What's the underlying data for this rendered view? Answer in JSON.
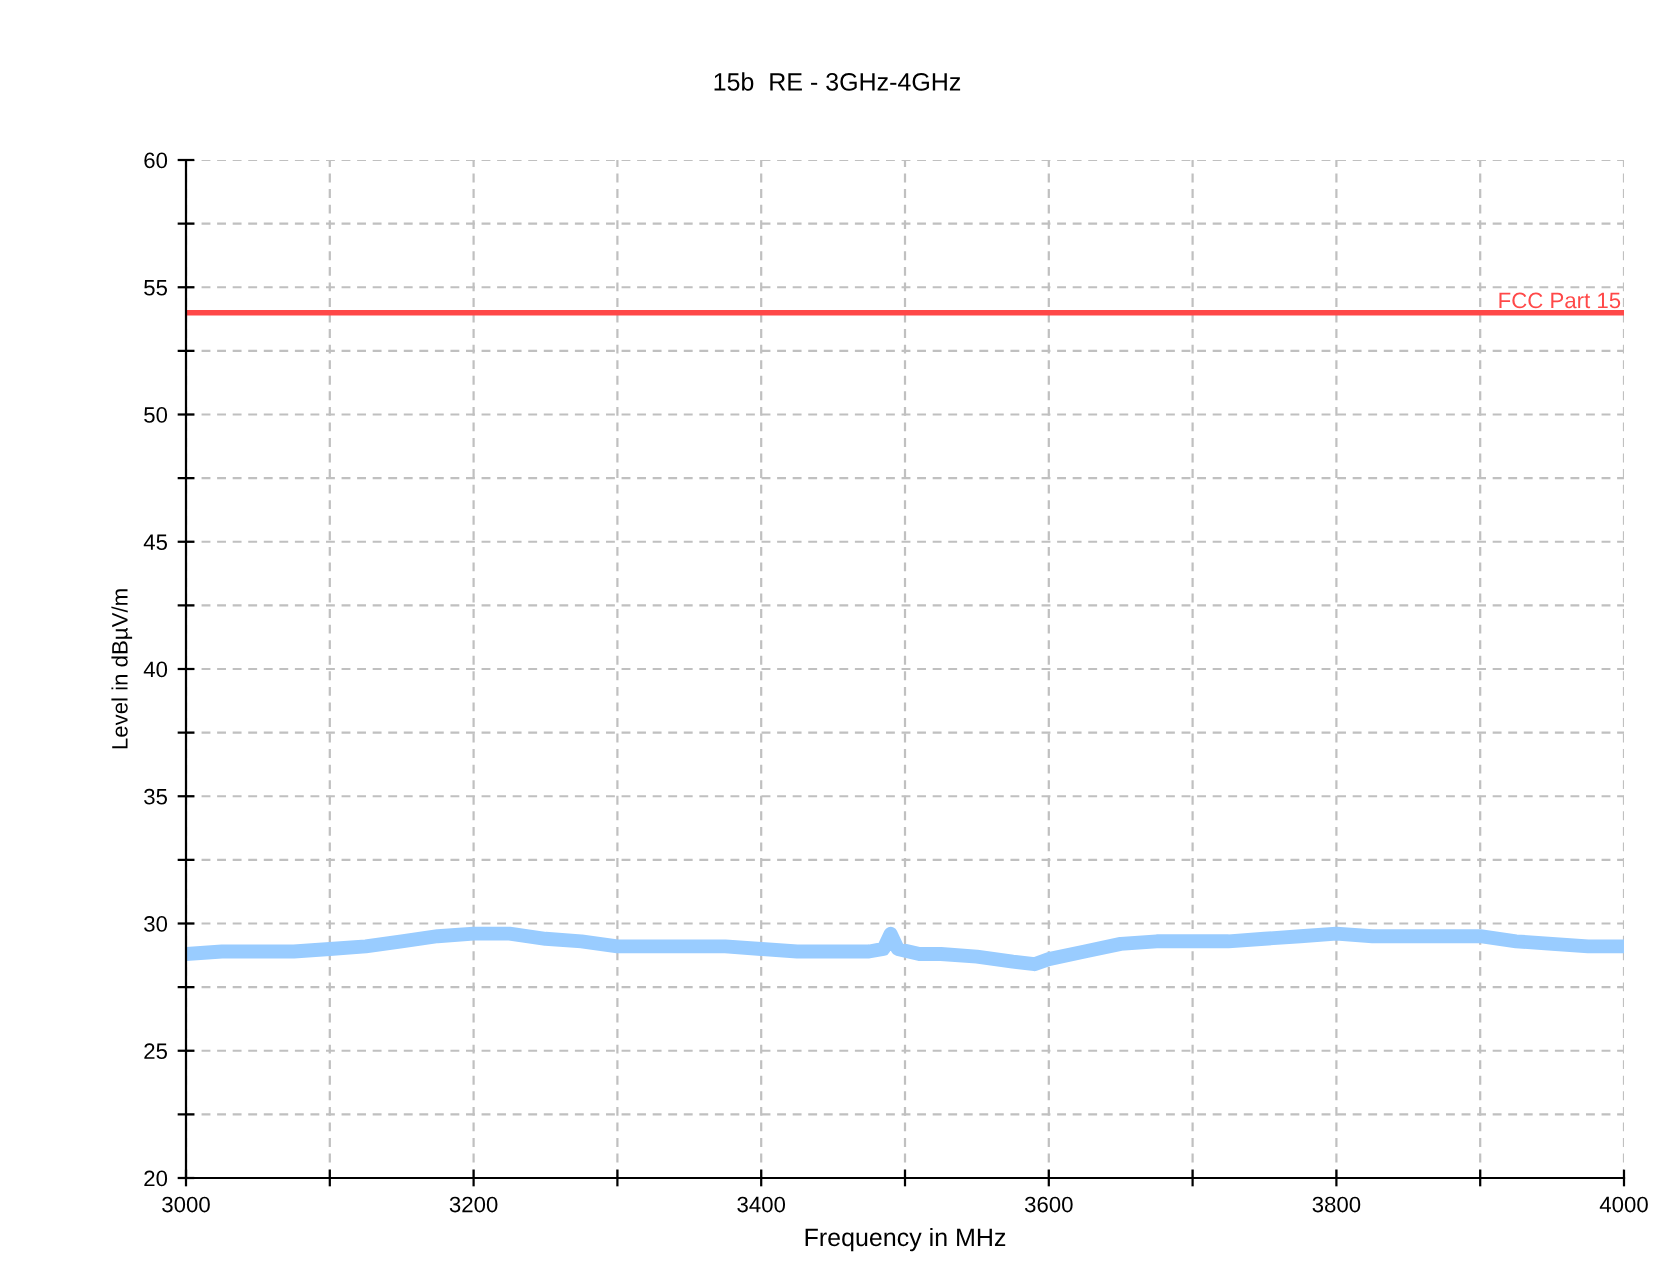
{
  "chart_data": {
    "type": "line",
    "title": "15b  RE - 3GHz-4GHz",
    "xlabel": "Frequency in MHz",
    "ylabel": "Level in dBµV/m",
    "x": [
      3000,
      3025,
      3050,
      3075,
      3100,
      3125,
      3150,
      3175,
      3200,
      3225,
      3250,
      3275,
      3300,
      3325,
      3350,
      3375,
      3400,
      3425,
      3450,
      3475,
      3485,
      3490,
      3495,
      3510,
      3525,
      3550,
      3575,
      3590,
      3600,
      3625,
      3650,
      3675,
      3700,
      3725,
      3750,
      3775,
      3800,
      3825,
      3850,
      3875,
      3900,
      3925,
      3950,
      3975,
      4000
    ],
    "series": [
      {
        "color": "#99ccff",
        "values": [
          28.8,
          28.9,
          28.9,
          28.9,
          29.0,
          29.1,
          29.3,
          29.5,
          29.6,
          29.6,
          29.4,
          29.3,
          29.1,
          29.1,
          29.1,
          29.1,
          29.0,
          28.9,
          28.9,
          28.9,
          29.0,
          29.6,
          29.0,
          28.8,
          28.8,
          28.7,
          28.5,
          28.4,
          28.6,
          28.9,
          29.2,
          29.3,
          29.3,
          29.3,
          29.4,
          29.5,
          29.6,
          29.5,
          29.5,
          29.5,
          29.5,
          29.3,
          29.2,
          29.1,
          29.1
        ]
      }
    ],
    "ref_lines": [
      {
        "axis": "y",
        "value": 54,
        "label": "FCC Part 15",
        "color": "#ff4848"
      }
    ],
    "xlim": [
      3000,
      4000
    ],
    "ylim": [
      20,
      60
    ],
    "xticks": [
      3000,
      {
        "value": 3100,
        "label": null
      },
      3200,
      {
        "value": 3300,
        "label": null
      },
      3400,
      {
        "value": 3500,
        "label": null
      },
      3600,
      {
        "value": 3700,
        "label": null
      },
      3800,
      {
        "value": 3900,
        "label": null
      },
      4000
    ],
    "yticks": [
      20,
      {
        "value": 22.5,
        "label": null
      },
      25,
      {
        "value": 27.5,
        "label": null
      },
      30,
      {
        "value": 32.5,
        "label": null
      },
      35,
      {
        "value": 37.5,
        "label": null
      },
      40,
      {
        "value": 42.5,
        "label": null
      },
      45,
      {
        "value": 47.5,
        "label": null
      },
      50,
      {
        "value": 52.5,
        "label": null
      },
      55,
      {
        "value": 57.5,
        "label": null
      },
      60
    ],
    "grid": true,
    "legend": false,
    "marker": "none",
    "line_style": "solid"
  }
}
